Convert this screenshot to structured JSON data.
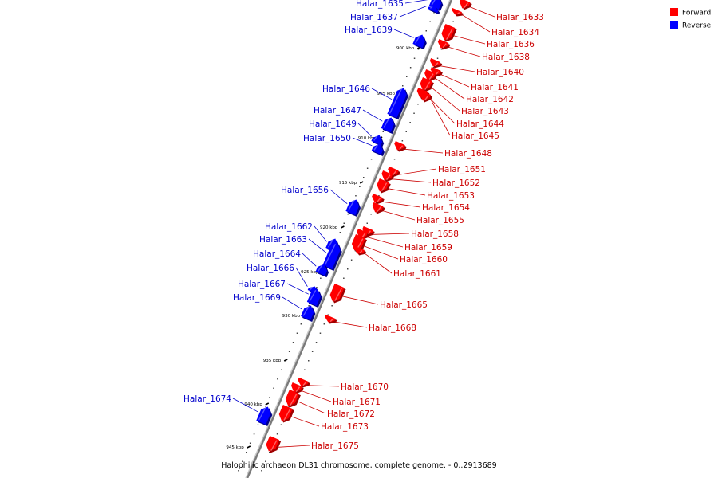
{
  "caption": "Halophilic archaeon DL31 chromosome, complete genome. - 0..2913689",
  "legend": {
    "forward": {
      "label": "Forward",
      "color": "#ff0000"
    },
    "reverse": {
      "label": "Reverse",
      "color": "#0000ff"
    }
  },
  "colors": {
    "forward": "#ff0000",
    "forward_dark": "#a00000",
    "forward_light": "#ff8a8a",
    "reverse": "#0000ff",
    "reverse_dark": "#00008c",
    "reverse_light": "#7a7aff",
    "axis": "#7a7a7a",
    "forward_label": "#cc0000",
    "reverse_label": "#0000cc"
  },
  "ticks": [
    {
      "label": "900 kbp",
      "pos_kbp": 900
    },
    {
      "label": "905 kbp",
      "pos_kbp": 905
    },
    {
      "label": "910 kbp",
      "pos_kbp": 910
    },
    {
      "label": "915 kbp",
      "pos_kbp": 915
    },
    {
      "label": "920 kbp",
      "pos_kbp": 920
    },
    {
      "label": "925 kbp",
      "pos_kbp": 925
    },
    {
      "label": "930 kbp",
      "pos_kbp": 930
    },
    {
      "label": "935 kbp",
      "pos_kbp": 935
    },
    {
      "label": "940 kbp",
      "pos_kbp": 940
    },
    {
      "label": "945 kbp",
      "pos_kbp": 945
    }
  ],
  "genes": [
    {
      "name": "Halar_1633",
      "strand": "forward"
    },
    {
      "name": "Halar_1634",
      "strand": "forward"
    },
    {
      "name": "Halar_1635",
      "strand": "reverse"
    },
    {
      "name": "Halar_1636",
      "strand": "forward"
    },
    {
      "name": "Halar_1637",
      "strand": "reverse"
    },
    {
      "name": "Halar_1638",
      "strand": "forward"
    },
    {
      "name": "Halar_1639",
      "strand": "reverse"
    },
    {
      "name": "Halar_1640",
      "strand": "forward"
    },
    {
      "name": "Halar_1641",
      "strand": "forward"
    },
    {
      "name": "Halar_1642",
      "strand": "forward"
    },
    {
      "name": "Halar_1643",
      "strand": "forward"
    },
    {
      "name": "Halar_1644",
      "strand": "forward"
    },
    {
      "name": "Halar_1645",
      "strand": "forward"
    },
    {
      "name": "Halar_1646",
      "strand": "reverse"
    },
    {
      "name": "Halar_1647",
      "strand": "reverse"
    },
    {
      "name": "Halar_1648",
      "strand": "forward"
    },
    {
      "name": "Halar_1649",
      "strand": "reverse"
    },
    {
      "name": "Halar_1650",
      "strand": "reverse"
    },
    {
      "name": "Halar_1651",
      "strand": "forward"
    },
    {
      "name": "Halar_1652",
      "strand": "forward"
    },
    {
      "name": "Halar_1653",
      "strand": "forward"
    },
    {
      "name": "Halar_1654",
      "strand": "forward"
    },
    {
      "name": "Halar_1655",
      "strand": "forward"
    },
    {
      "name": "Halar_1656",
      "strand": "reverse"
    },
    {
      "name": "Halar_1658",
      "strand": "forward"
    },
    {
      "name": "Halar_1659",
      "strand": "forward"
    },
    {
      "name": "Halar_1660",
      "strand": "forward"
    },
    {
      "name": "Halar_1661",
      "strand": "forward"
    },
    {
      "name": "Halar_1662",
      "strand": "reverse"
    },
    {
      "name": "Halar_1663",
      "strand": "reverse"
    },
    {
      "name": "Halar_1664",
      "strand": "reverse"
    },
    {
      "name": "Halar_1665",
      "strand": "forward"
    },
    {
      "name": "Halar_1666",
      "strand": "reverse"
    },
    {
      "name": "Halar_1667",
      "strand": "reverse"
    },
    {
      "name": "Halar_1668",
      "strand": "forward"
    },
    {
      "name": "Halar_1669",
      "strand": "reverse"
    },
    {
      "name": "Halar_1670",
      "strand": "forward"
    },
    {
      "name": "Halar_1671",
      "strand": "forward"
    },
    {
      "name": "Halar_1672",
      "strand": "forward"
    },
    {
      "name": "Halar_1673",
      "strand": "forward"
    },
    {
      "name": "Halar_1674",
      "strand": "reverse"
    },
    {
      "name": "Halar_1675",
      "strand": "forward"
    }
  ]
}
